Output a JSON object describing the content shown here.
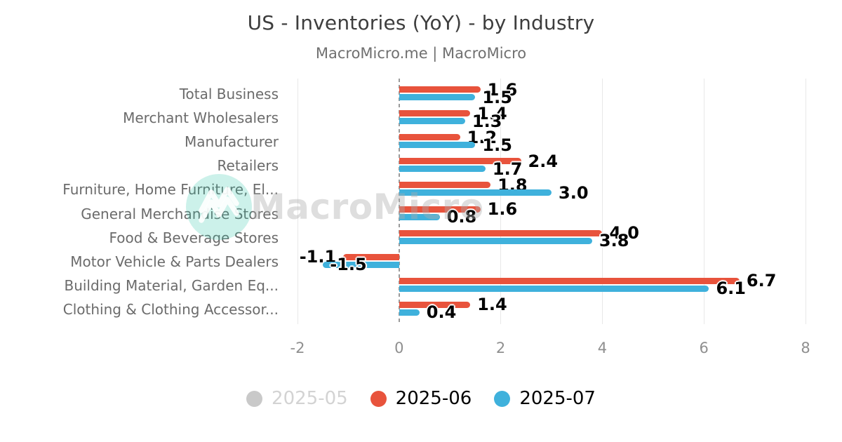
{
  "title": "US - Inventories (YoY) - by Industry",
  "subtitle": "MacroMicro.me | MacroMicro",
  "watermark": {
    "text": "MacroMicro"
  },
  "colors": {
    "red": "#e8533c",
    "blue": "#3fb1dc",
    "disabled_gray": "#c9c9c9",
    "grid": "#e8e8e8",
    "zero_line": "#9a9a9a",
    "watermark_teal": "rgba(42,196,166,0.24)"
  },
  "chart_data": {
    "type": "bar",
    "orientation": "horizontal",
    "title": "US - Inventories (YoY) - by Industry",
    "subtitle": "MacroMicro.me | MacroMicro",
    "categories": [
      "Total Business",
      "Merchant Wholesalers",
      "Manufacturer",
      "Retailers",
      "Furniture, Home Furniture, El...",
      "General Merchandise Stores",
      "Food & Beverage Stores",
      "Motor Vehicle & Parts Dealers",
      "Building Material, Garden Eq...",
      "Clothing & Clothing Accessor..."
    ],
    "series": [
      {
        "name": "2025-05",
        "color": "#c9c9c9",
        "visible": false,
        "values": []
      },
      {
        "name": "2025-06",
        "color": "#e8533c",
        "visible": true,
        "values": [
          1.6,
          1.4,
          1.2,
          2.4,
          1.8,
          1.6,
          4.0,
          -1.1,
          6.7,
          1.4
        ]
      },
      {
        "name": "2025-07",
        "color": "#3fb1dc",
        "visible": true,
        "values": [
          1.5,
          1.3,
          1.5,
          1.7,
          3.0,
          0.8,
          3.8,
          -1.5,
          6.1,
          0.4
        ]
      }
    ],
    "xlim": [
      -2,
      8
    ],
    "xticks": [
      -2,
      0,
      2,
      4,
      6,
      8
    ],
    "grid": true,
    "zero_line_dashed": true,
    "data_labels": true,
    "legend_position": "bottom"
  },
  "legend": {
    "items": [
      {
        "label": "2025-05",
        "color": "#c9c9c9",
        "disabled": true
      },
      {
        "label": "2025-06",
        "color": "#e8533c",
        "disabled": false
      },
      {
        "label": "2025-07",
        "color": "#3fb1dc",
        "disabled": false
      }
    ]
  }
}
